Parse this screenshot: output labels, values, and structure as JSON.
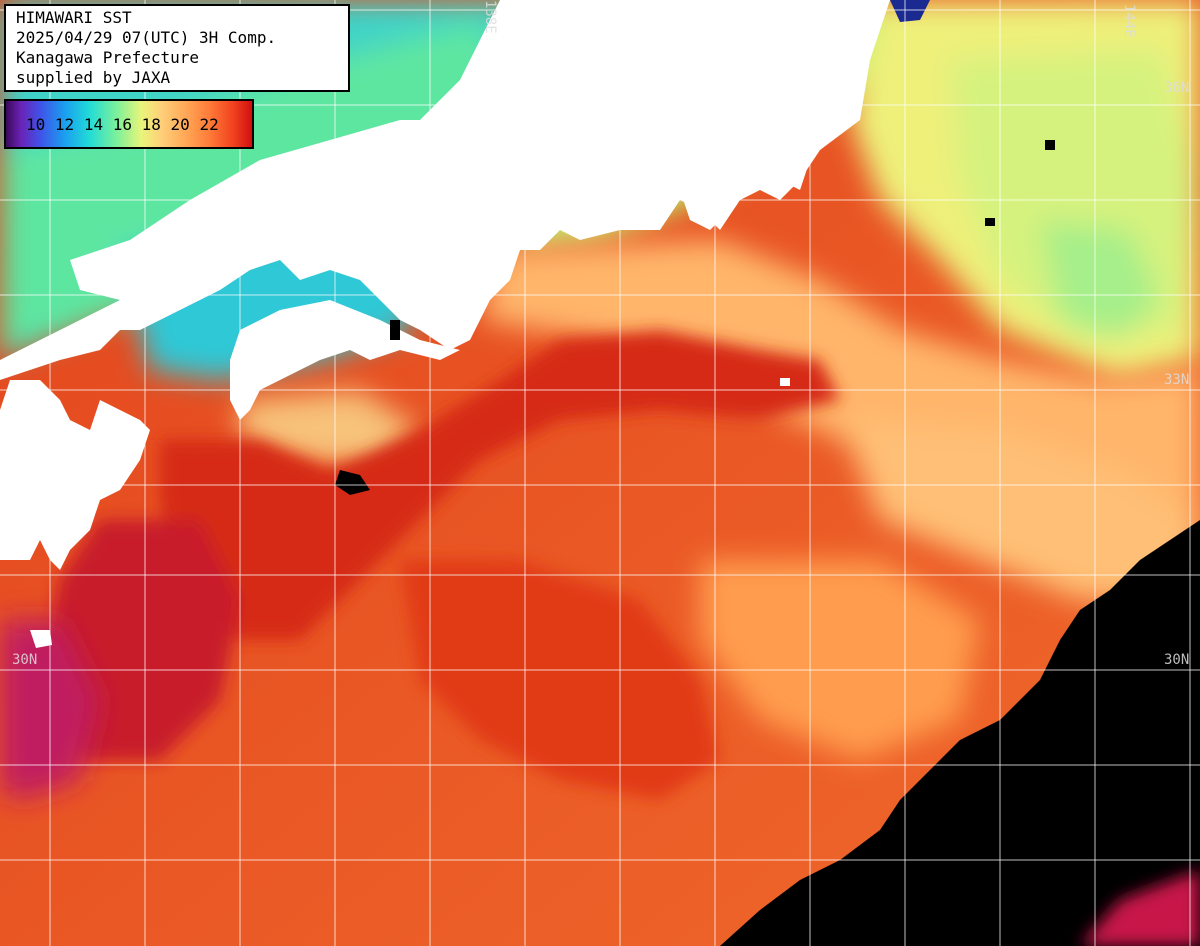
{
  "title": {
    "lines": [
      "HIMAWARI SST",
      "2025/04/29 07(UTC) 3H Comp.",
      "Kanagawa Prefecture",
      "supplied by JAXA"
    ]
  },
  "scale": {
    "labels": [
      "10",
      "12",
      "14",
      "16",
      "18",
      "20",
      "22"
    ]
  },
  "grid_labels": {
    "lat_36": "36N",
    "lat_33_right": "33N",
    "lat_30_left": "30N",
    "lat_30_right": "30N",
    "lon_138": "138E",
    "lon_144": "144E"
  },
  "colors": {
    "land": "#ffffff",
    "no_data": "#000000",
    "warm": "#e8401c",
    "cold": "#7ef08a",
    "grid": "#ffffff"
  }
}
